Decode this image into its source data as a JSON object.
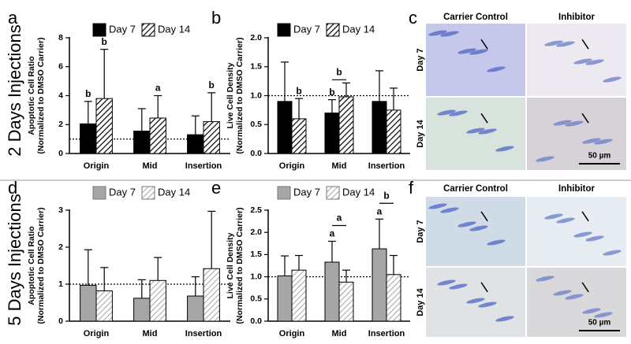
{
  "rows": [
    "2 Days Injections",
    "5 Days Injections"
  ],
  "micrographs": [
    {
      "letter": "c",
      "columns": [
        "Carrier Control",
        "Inhibitor"
      ],
      "rows": [
        "Day 7",
        "Day 14"
      ],
      "scale": "50 µm"
    },
    {
      "letter": "f",
      "columns": [
        "Carrier Control",
        "Inhibitor"
      ],
      "rows": [
        "Day 7",
        "Day 14"
      ],
      "scale": "50 µm"
    }
  ],
  "chart_data": [
    {
      "type": "bar",
      "panel": "a",
      "ylabel": [
        "Apoptotic Cell Ratio",
        "(Normalized to DMSO Carrier)"
      ],
      "categories": [
        "Origin",
        "Mid",
        "Insertion"
      ],
      "series": [
        {
          "name": "Day 7",
          "color": "#000000",
          "hatch": false,
          "values": [
            2.05,
            1.55,
            1.3
          ],
          "errors": [
            1.55,
            1.55,
            1.3
          ],
          "letters": [
            "b",
            null,
            null
          ]
        },
        {
          "name": "Day 14",
          "color": "#000000",
          "hatch": true,
          "values": [
            3.8,
            2.45,
            2.2
          ],
          "errors": [
            3.4,
            1.55,
            2.0
          ],
          "letters": [
            "b",
            "a",
            "b"
          ]
        }
      ],
      "bracket_letters": [
        null,
        null,
        null
      ],
      "hline": 1,
      "ylim": [
        0,
        8
      ],
      "yticks": [
        0,
        2,
        4,
        6,
        8
      ]
    },
    {
      "type": "bar",
      "panel": "b",
      "ylabel": [
        "Live Cell  Density",
        "(Normalized to DMSO Carrier)"
      ],
      "categories": [
        "Origin",
        "Mid",
        "Insertion"
      ],
      "series": [
        {
          "name": "Day 7",
          "color": "#000000",
          "hatch": false,
          "values": [
            0.9,
            0.7,
            0.9
          ],
          "errors": [
            0.68,
            0.23,
            0.53
          ],
          "letters": [
            null,
            "b",
            null
          ]
        },
        {
          "name": "Day 14",
          "color": "#000000",
          "hatch": true,
          "values": [
            0.6,
            0.98,
            0.75
          ],
          "errors": [
            0.35,
            0.24,
            0.38
          ],
          "letters": [
            "b",
            null,
            null
          ]
        }
      ],
      "bracket_letters": [
        null,
        "b",
        null
      ],
      "hline": 1,
      "ylim": [
        0,
        2
      ],
      "yticks": [
        {
          "value": 0,
          "label": "0.0"
        },
        {
          "value": 0.5,
          "label": "0.5"
        },
        {
          "value": 1,
          "label": "1.0"
        },
        {
          "value": 1.5,
          "label": "1.5"
        },
        {
          "value": 2,
          "label": "2.0"
        }
      ]
    },
    {
      "type": "bar",
      "panel": "d",
      "ylabel": [
        "Apoptotic Cell Ratio",
        "(Normalized to DMSO Carrier)"
      ],
      "categories": [
        "Origin",
        "Mid",
        "Insertion"
      ],
      "series": [
        {
          "name": "Day 7",
          "color": "#a6a6a6",
          "hatch": false,
          "values": [
            0.97,
            0.62,
            0.68
          ],
          "errors": [
            0.96,
            0.5,
            0.52
          ],
          "letters": [
            null,
            null,
            null
          ]
        },
        {
          "name": "Day 14",
          "color": "#b0b0b0",
          "hatch": true,
          "values": [
            0.82,
            1.1,
            1.42
          ],
          "errors": [
            0.63,
            0.62,
            1.55
          ],
          "letters": [
            null,
            null,
            null
          ]
        }
      ],
      "bracket_letters": [
        null,
        null,
        null
      ],
      "hline": 1,
      "ylim": [
        0,
        3
      ],
      "yticks": [
        0,
        1,
        2,
        3
      ]
    },
    {
      "type": "bar",
      "panel": "e",
      "ylabel": [
        "Live Cell  Density",
        "(Normalized to DMSO Carrier)"
      ],
      "categories": [
        "Origin",
        "Mid",
        "Insertion"
      ],
      "series": [
        {
          "name": "Day 7",
          "color": "#a6a6a6",
          "hatch": false,
          "values": [
            1.02,
            1.33,
            1.63
          ],
          "errors": [
            0.45,
            0.47,
            0.67
          ],
          "letters": [
            null,
            "a",
            "a"
          ]
        },
        {
          "name": "Day 14",
          "color": "#b0b0b0",
          "hatch": true,
          "values": [
            1.15,
            0.88,
            1.05
          ],
          "errors": [
            0.33,
            0.27,
            0.43
          ],
          "letters": [
            null,
            null,
            null
          ]
        }
      ],
      "bracket_letters": [
        null,
        "a",
        "b"
      ],
      "hline": 1,
      "ylim": [
        0,
        2.5
      ],
      "yticks": [
        {
          "value": 0,
          "label": "0.0"
        },
        {
          "value": 0.5,
          "label": "0.5"
        },
        {
          "value": 1,
          "label": "1.0"
        },
        {
          "value": 1.5,
          "label": "1.5"
        },
        {
          "value": 2,
          "label": "2.0"
        },
        {
          "value": 2.5,
          "label": "2.5"
        }
      ]
    }
  ]
}
